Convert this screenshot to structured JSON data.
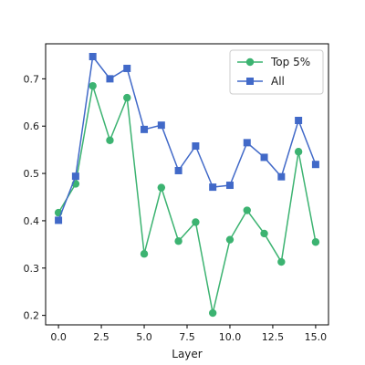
{
  "chart_data": {
    "type": "line",
    "title": "",
    "xlabel": "Layer",
    "ylabel": "",
    "xlim": [
      -0.75,
      15.75
    ],
    "ylim": [
      0.18,
      0.774
    ],
    "x_ticks": [
      0,
      2.5,
      5,
      7.5,
      10,
      12.5,
      15
    ],
    "x_tick_labels": [
      "0.0",
      "2.5",
      "5.0",
      "7.5",
      "10.0",
      "12.5",
      "15.0"
    ],
    "y_ticks": [
      0.2,
      0.3,
      0.4,
      0.5,
      0.6,
      0.7
    ],
    "y_tick_labels": [
      "0.2",
      "0.3",
      "0.4",
      "0.5",
      "0.6",
      "0.7"
    ],
    "grid": false,
    "legend_position": "top-right",
    "x": [
      0,
      1,
      2,
      3,
      4,
      5,
      6,
      7,
      8,
      9,
      10,
      11,
      12,
      13,
      14,
      15
    ],
    "series": [
      {
        "name": "Top 5%",
        "color": "#3cb371",
        "marker": "circle",
        "values": [
          0.417,
          0.478,
          0.685,
          0.57,
          0.66,
          0.33,
          0.47,
          0.357,
          0.397,
          0.205,
          0.36,
          0.422,
          0.373,
          0.313,
          0.546,
          0.355
        ]
      },
      {
        "name": "All",
        "color": "#4169c8",
        "marker": "square",
        "values": [
          0.401,
          0.494,
          0.747,
          0.7,
          0.722,
          0.593,
          0.602,
          0.506,
          0.558,
          0.471,
          0.475,
          0.565,
          0.534,
          0.493,
          0.612,
          0.519
        ]
      }
    ]
  }
}
